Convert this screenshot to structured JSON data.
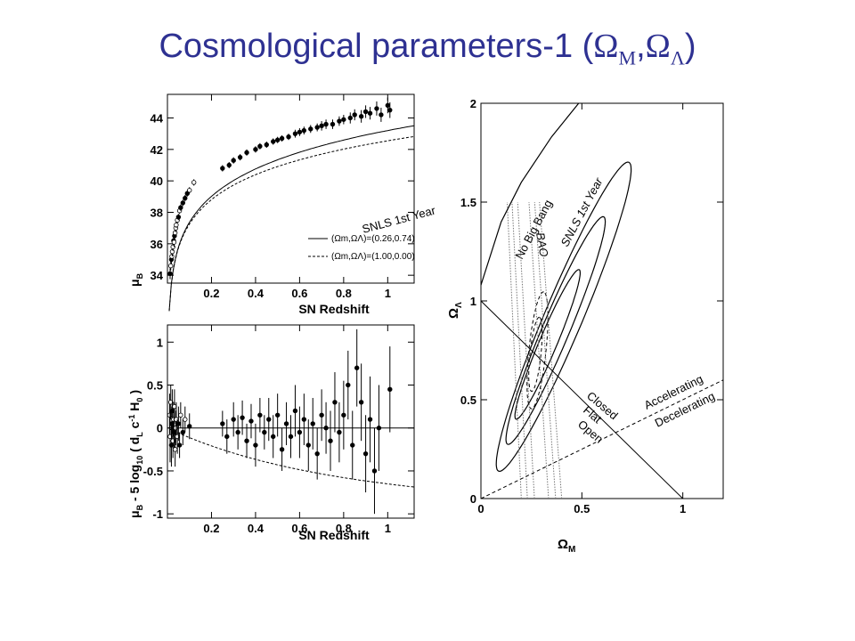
{
  "title": {
    "main": "Cosmological parameters-1 (",
    "omega": "Ω",
    "sub_m": "M",
    "comma": ",",
    "sub_l": "Λ",
    "close": ")"
  },
  "colors": {
    "title": "#2e3192",
    "ink": "#000000",
    "bao": "#777777"
  },
  "chart_data": [
    {
      "id": "hubble",
      "type": "scatter",
      "xlabel": "SN Redshift",
      "ylabel": "μ_B",
      "ylabel_parts": {
        "mu": "μ",
        "sub": "B"
      },
      "xlim": [
        0,
        1.12
      ],
      "ylim": [
        33.5,
        45.5
      ],
      "xticks": [
        0.2,
        0.4,
        0.6,
        0.8,
        1
      ],
      "xtick_labels": [
        "0.2",
        "0.4",
        "0.6",
        "0.8",
        "1"
      ],
      "yticks": [
        34,
        36,
        38,
        40,
        42,
        44
      ],
      "ytick_labels": [
        "34",
        "36",
        "38",
        "40",
        "42",
        "44"
      ],
      "annotation": "SNLS 1st Year",
      "legend": {
        "position": "bottom-right",
        "entries": [
          {
            "label": "(Ωm,ΩΛ)=(0.26,0.74)",
            "style": "solid",
            "omega_m": 0.26,
            "omega_l": 0.74
          },
          {
            "label": "(Ωm,ΩΛ)=(1.00,0.00)",
            "style": "dashed",
            "omega_m": 1.0,
            "omega_l": 0.0
          }
        ]
      },
      "points": [
        [
          0.012,
          34.1,
          0.35
        ],
        [
          0.015,
          34.6,
          0.3
        ],
        [
          0.018,
          35.0,
          0.3
        ],
        [
          0.02,
          35.2,
          0.25
        ],
        [
          0.022,
          35.5,
          0.3
        ],
        [
          0.025,
          35.8,
          0.25
        ],
        [
          0.028,
          36.2,
          0.25
        ],
        [
          0.03,
          36.1,
          0.3
        ],
        [
          0.032,
          36.5,
          0.25
        ],
        [
          0.035,
          36.7,
          0.25
        ],
        [
          0.038,
          37.0,
          0.25
        ],
        [
          0.04,
          37.2,
          0.2
        ],
        [
          0.045,
          37.5,
          0.2
        ],
        [
          0.05,
          37.7,
          0.2
        ],
        [
          0.055,
          38.1,
          0.2
        ],
        [
          0.06,
          38.3,
          0.2
        ],
        [
          0.07,
          38.6,
          0.2
        ],
        [
          0.08,
          38.9,
          0.2
        ],
        [
          0.09,
          39.2,
          0.2
        ],
        [
          0.1,
          39.4,
          0.2
        ],
        [
          0.12,
          39.9,
          0.2
        ],
        [
          0.25,
          40.8,
          0.2
        ],
        [
          0.28,
          41.0,
          0.2
        ],
        [
          0.3,
          41.3,
          0.2
        ],
        [
          0.33,
          41.5,
          0.2
        ],
        [
          0.36,
          41.8,
          0.2
        ],
        [
          0.4,
          42.0,
          0.2
        ],
        [
          0.42,
          42.2,
          0.2
        ],
        [
          0.45,
          42.3,
          0.2
        ],
        [
          0.48,
          42.5,
          0.2
        ],
        [
          0.5,
          42.6,
          0.2
        ],
        [
          0.52,
          42.7,
          0.2
        ],
        [
          0.55,
          42.8,
          0.2
        ],
        [
          0.58,
          43.0,
          0.25
        ],
        [
          0.6,
          43.1,
          0.25
        ],
        [
          0.62,
          43.2,
          0.25
        ],
        [
          0.65,
          43.3,
          0.25
        ],
        [
          0.68,
          43.4,
          0.25
        ],
        [
          0.7,
          43.5,
          0.3
        ],
        [
          0.72,
          43.6,
          0.3
        ],
        [
          0.75,
          43.6,
          0.3
        ],
        [
          0.78,
          43.8,
          0.3
        ],
        [
          0.8,
          43.9,
          0.3
        ],
        [
          0.83,
          44.0,
          0.35
        ],
        [
          0.85,
          44.2,
          0.35
        ],
        [
          0.88,
          44.1,
          0.4
        ],
        [
          0.9,
          44.4,
          0.4
        ],
        [
          0.92,
          44.3,
          0.4
        ],
        [
          0.95,
          44.6,
          0.45
        ],
        [
          0.97,
          44.2,
          0.45
        ],
        [
          1.0,
          44.8,
          0.5
        ],
        [
          1.01,
          44.5,
          0.5
        ]
      ]
    },
    {
      "id": "residuals",
      "type": "scatter",
      "xlabel": "SN Redshift",
      "ylabel": "μ_B - 5 log10 ( d_L c^-1 H_0 )",
      "ylabel_parts": {
        "mu": "μ",
        "subB": "B",
        "mid": " - 5 log",
        "sub10": "10",
        "paren": " ( d",
        "subL": "L",
        "c": " c",
        "sup": "-1",
        "h": " H",
        "sub0": "0",
        "end": " )"
      },
      "xlim": [
        0,
        1.12
      ],
      "ylim": [
        -1.05,
        1.2
      ],
      "xticks": [
        0.2,
        0.4,
        0.6,
        0.8,
        1
      ],
      "xtick_labels": [
        "0.2",
        "0.4",
        "0.6",
        "0.8",
        "1"
      ],
      "yticks": [
        -1,
        -0.5,
        0,
        0.5,
        1
      ],
      "ytick_labels": [
        "-1",
        "-0.5",
        "0",
        "0.5",
        "1"
      ],
      "points": [
        [
          0.01,
          0.15,
          0.25
        ],
        [
          0.012,
          -0.1,
          0.3
        ],
        [
          0.015,
          0.3,
          0.2
        ],
        [
          0.018,
          -0.2,
          0.25
        ],
        [
          0.02,
          0.05,
          0.2
        ],
        [
          0.022,
          0.2,
          0.25
        ],
        [
          0.025,
          -0.15,
          0.2
        ],
        [
          0.028,
          0.1,
          0.2
        ],
        [
          0.03,
          -0.05,
          0.2
        ],
        [
          0.032,
          0.25,
          0.2
        ],
        [
          0.035,
          -0.25,
          0.2
        ],
        [
          0.038,
          0.0,
          0.2
        ],
        [
          0.04,
          0.1,
          0.2
        ],
        [
          0.045,
          -0.1,
          0.2
        ],
        [
          0.05,
          0.05,
          0.2
        ],
        [
          0.055,
          -0.2,
          0.15
        ],
        [
          0.06,
          0.15,
          0.15
        ],
        [
          0.07,
          -0.05,
          0.15
        ],
        [
          0.08,
          0.1,
          0.15
        ],
        [
          0.1,
          0.02,
          0.15
        ],
        [
          0.25,
          0.05,
          0.15
        ],
        [
          0.27,
          -0.1,
          0.2
        ],
        [
          0.3,
          0.1,
          0.2
        ],
        [
          0.32,
          -0.05,
          0.2
        ],
        [
          0.34,
          0.12,
          0.2
        ],
        [
          0.36,
          -0.15,
          0.2
        ],
        [
          0.38,
          0.08,
          0.2
        ],
        [
          0.4,
          -0.2,
          0.25
        ],
        [
          0.42,
          0.15,
          0.2
        ],
        [
          0.44,
          -0.05,
          0.2
        ],
        [
          0.46,
          0.1,
          0.25
        ],
        [
          0.48,
          -0.1,
          0.25
        ],
        [
          0.5,
          0.15,
          0.25
        ],
        [
          0.52,
          -0.25,
          0.25
        ],
        [
          0.54,
          0.05,
          0.25
        ],
        [
          0.56,
          -0.1,
          0.25
        ],
        [
          0.58,
          0.2,
          0.3
        ],
        [
          0.6,
          -0.05,
          0.3
        ],
        [
          0.62,
          0.1,
          0.3
        ],
        [
          0.64,
          -0.2,
          0.3
        ],
        [
          0.66,
          0.05,
          0.3
        ],
        [
          0.68,
          -0.3,
          0.3
        ],
        [
          0.7,
          0.15,
          0.3
        ],
        [
          0.72,
          0.0,
          0.3
        ],
        [
          0.74,
          -0.15,
          0.35
        ],
        [
          0.76,
          0.3,
          0.35
        ],
        [
          0.78,
          -0.05,
          0.35
        ],
        [
          0.8,
          0.15,
          0.4
        ],
        [
          0.82,
          0.5,
          0.4
        ],
        [
          0.84,
          -0.2,
          0.4
        ],
        [
          0.86,
          0.7,
          0.45
        ],
        [
          0.88,
          0.3,
          0.45
        ],
        [
          0.9,
          -0.3,
          0.45
        ],
        [
          0.92,
          0.1,
          0.5
        ],
        [
          0.94,
          -0.5,
          0.5
        ],
        [
          0.96,
          0.0,
          0.5
        ],
        [
          1.01,
          0.45,
          0.5
        ]
      ]
    },
    {
      "id": "omega-plane",
      "type": "contour",
      "xlabel": "Ω_M",
      "xlabel_parts": {
        "omega": "Ω",
        "sub": "M"
      },
      "ylabel": "Ω_Λ",
      "ylabel_parts": {
        "omega": "Ω",
        "sub": "Λ"
      },
      "xlim": [
        0,
        1.2
      ],
      "ylim": [
        0,
        2
      ],
      "xticks": [
        0,
        0.5,
        1
      ],
      "xtick_labels": [
        "0",
        "0.5",
        "1"
      ],
      "yticks": [
        0,
        0.5,
        1,
        1.5,
        2
      ],
      "ytick_labels": [
        "0",
        "0.5",
        "1",
        "1.5",
        "2"
      ],
      "labels": {
        "no_big_bang": "No Big Bang",
        "bao": "BAO",
        "snls": "SNLS 1st Year",
        "closed": "Closed",
        "flat": "Flat",
        "open": "Open",
        "accelerating": "Accelerating",
        "decelerating": "Decelerating"
      },
      "snls_ellipses": [
        {
          "cx": 0.33,
          "cy": 0.78,
          "a": 0.46,
          "b": 0.065,
          "angle_deg": 55
        },
        {
          "cx": 0.37,
          "cy": 0.85,
          "a": 0.7,
          "b": 0.1,
          "angle_deg": 55
        },
        {
          "cx": 0.41,
          "cy": 0.92,
          "a": 0.95,
          "b": 0.14,
          "angle_deg": 55
        }
      ],
      "joint_ellipses": [
        {
          "cx": 0.27,
          "cy": 0.73,
          "a": 0.19,
          "b": 0.045,
          "angle_deg": 80
        },
        {
          "cx": 0.28,
          "cy": 0.75,
          "a": 0.3,
          "b": 0.07,
          "angle_deg": 80
        }
      ],
      "bao_band": {
        "center_x_at_0": 0.3,
        "center_x_at_1_5": 0.21,
        "half_widths": [
          0.035,
          0.07,
          0.1
        ]
      },
      "no_big_bang_curve": [
        [
          0,
          1.08
        ],
        [
          0.1,
          1.4
        ],
        [
          0.2,
          1.6
        ],
        [
          0.35,
          1.83
        ],
        [
          0.5,
          2.02
        ]
      ],
      "flat_line": [
        [
          0,
          1
        ],
        [
          1,
          0
        ]
      ],
      "accel_line": [
        [
          0,
          0
        ],
        [
          1.2,
          0.6
        ]
      ]
    }
  ]
}
